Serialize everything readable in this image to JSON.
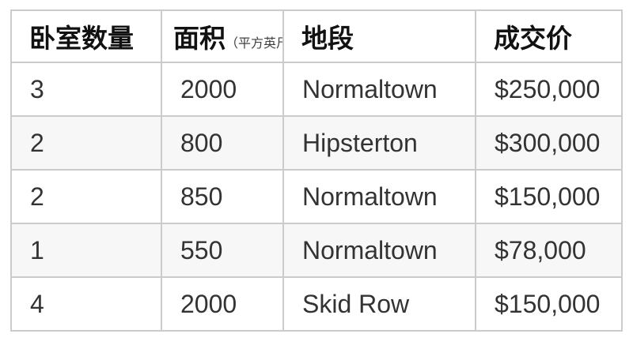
{
  "chart_data": {
    "type": "table",
    "columns": [
      {
        "label": "卧室数量"
      },
      {
        "label": "面积",
        "sublabel": "（平方英尺）"
      },
      {
        "label": "地段"
      },
      {
        "label": "成交价"
      }
    ],
    "rows": [
      [
        "3",
        "2000",
        "Normaltown",
        "$250,000"
      ],
      [
        "2",
        "800",
        "Hipsterton",
        "$300,000"
      ],
      [
        "2",
        "850",
        "Normaltown",
        "$150,000"
      ],
      [
        "1",
        "550",
        "Normaltown",
        "$78,000"
      ],
      [
        "4",
        "2000",
        "Skid Row",
        "$150,000"
      ]
    ]
  },
  "colors": {
    "border": "#cbcbcb",
    "row_stripe": "#f7f7f7",
    "header_text": "#111111",
    "body_text": "#333333",
    "background": "#ffffff"
  }
}
